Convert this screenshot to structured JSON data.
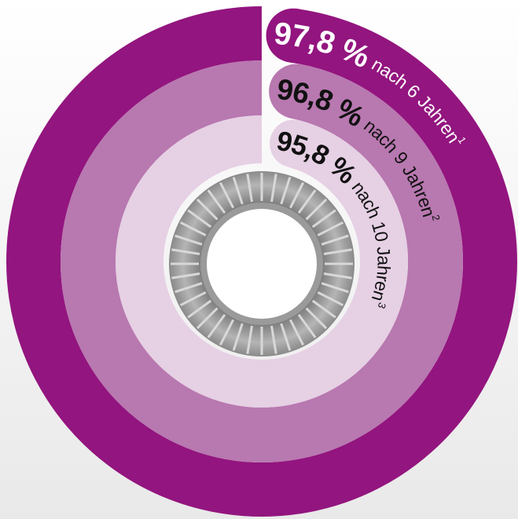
{
  "chart_data": {
    "type": "radial_bar",
    "max": 100,
    "series": [
      {
        "name": "nach 6 Jahren",
        "note": "1",
        "values": [
          97.8
        ],
        "value_labels": [
          "97,8 %"
        ],
        "color": "#93157f",
        "text_color": "#ffffff"
      },
      {
        "name": "nach 9 Jahren",
        "note": "2",
        "values": [
          96.8
        ],
        "value_labels": [
          "96,8 %"
        ],
        "color": "#b878b0",
        "text_color": "#111111"
      },
      {
        "name": "nach 10 Jahren",
        "note": "3",
        "values": [
          95.8
        ],
        "value_labels": [
          "95,8 %"
        ],
        "color": "#e6d0e4",
        "text_color": "#111111"
      }
    ]
  }
}
